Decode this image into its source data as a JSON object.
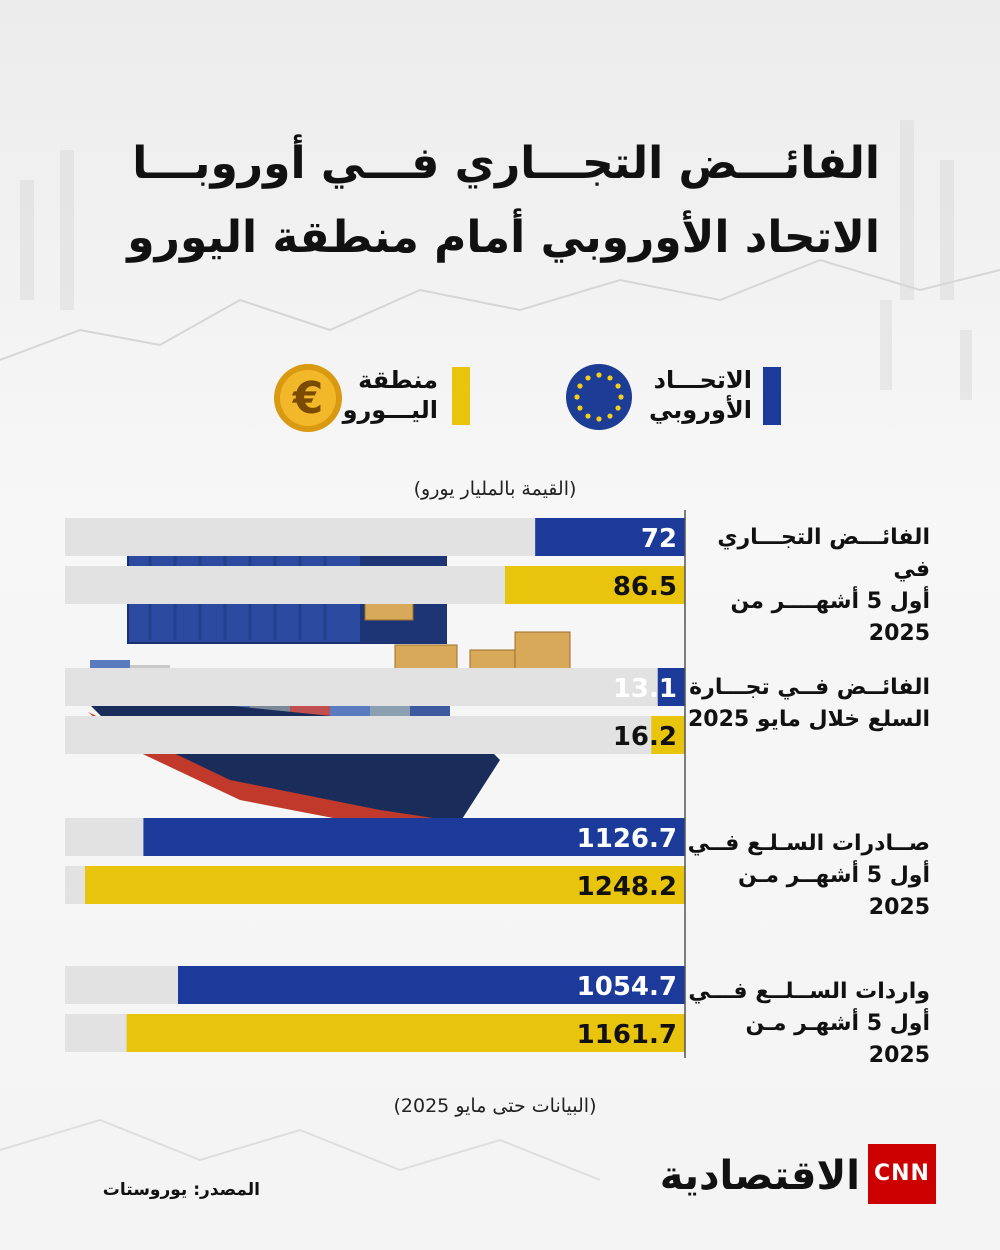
{
  "title_line1": "الفائـــض التجـــاري فـــي أوروبـــا",
  "title_line2": "الاتحاد الأوروبي أمام منطقة اليورو",
  "legend": [
    {
      "label_line1": "الاتحـــاد",
      "label_line2": "الأوروبي",
      "color": "#1b3a9a"
    },
    {
      "label_line1": "منطقة",
      "label_line2": "اليـــورو",
      "color": "#e8c40c"
    }
  ],
  "unit_note": "(القيمة بالمليار يورو)",
  "date_note": "(البيانات حتى مايو 2025)",
  "source": "المصدر: يوروستات",
  "brand": {
    "name": "الاقتصادية",
    "cnn": "CNN"
  },
  "colors": {
    "eu": "#1b3a9a",
    "eurozone": "#e8c40c",
    "track": "#e2e2e2"
  },
  "chart_data": {
    "type": "bar",
    "orientation": "horizontal",
    "categories": [
      {
        "line1": "الفائـــض التجـــاري في",
        "line2": "أول 5 أشهــــر من 2025"
      },
      {
        "line1": "الفائــض فــي تجـــارة",
        "line2": "السلع  خلال مايو 2025"
      },
      {
        "line1": "صــادرات السـلـع فــي",
        "line2": "أول 5 أشهــر مـن 2025"
      },
      {
        "line1": "واردات الســلــع فـــي",
        "line2": "أول 5 أشهـر مـن 2025"
      }
    ],
    "series": [
      {
        "name": "الاتحاد الأوروبي",
        "values": [
          "72",
          "13.1",
          "1126.7",
          "1054.7"
        ]
      },
      {
        "name": "منطقة اليورو",
        "values": [
          "86.5",
          "16.2",
          "1248.2",
          "1161.7"
        ]
      }
    ]
  }
}
